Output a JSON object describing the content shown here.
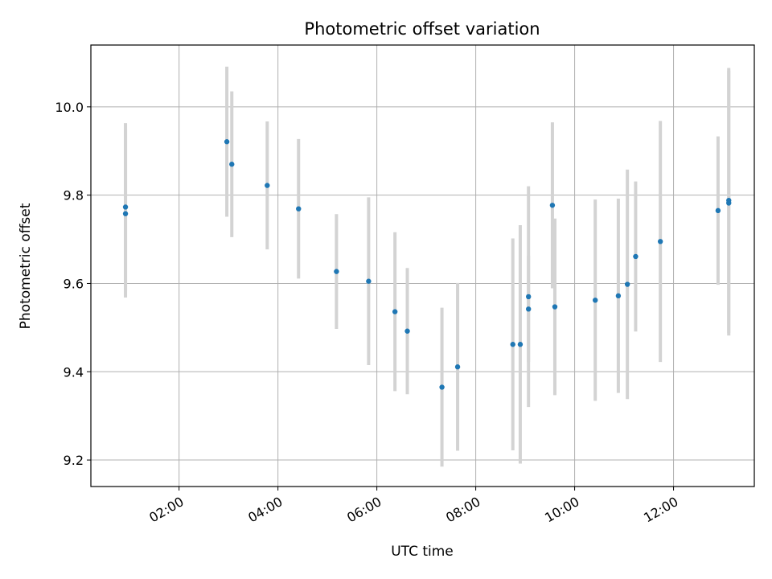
{
  "chart_data": {
    "type": "scatter",
    "title": "Photometric offset variation",
    "xlabel": "UTC time",
    "ylabel": "Photometric offset",
    "x_ticks": [
      "02:00",
      "04:00",
      "06:00",
      "08:00",
      "10:00",
      "12:00"
    ],
    "y_ticks": [
      "9.2",
      "9.4",
      "9.6",
      "9.8",
      "10.0"
    ],
    "xlim": [
      "00:13",
      "13:38"
    ],
    "ylim": [
      9.14,
      10.14
    ],
    "grid": true,
    "series": [
      {
        "marker_color": "#1f77b4",
        "errorbar_color": "#d3d3d3",
        "points": [
          {
            "x": "00:55",
            "y": 9.773,
            "err": 0.19
          },
          {
            "x": "00:55",
            "y": 9.758,
            "err": 0.19
          },
          {
            "x": "02:58",
            "y": 9.921,
            "err": 0.17
          },
          {
            "x": "03:04",
            "y": 9.87,
            "err": 0.165
          },
          {
            "x": "03:47",
            "y": 9.822,
            "err": 0.145
          },
          {
            "x": "04:25",
            "y": 9.769,
            "err": 0.158
          },
          {
            "x": "05:11",
            "y": 9.627,
            "err": 0.13
          },
          {
            "x": "05:50",
            "y": 9.605,
            "err": 0.19
          },
          {
            "x": "06:22",
            "y": 9.536,
            "err": 0.18
          },
          {
            "x": "06:37",
            "y": 9.492,
            "err": 0.143
          },
          {
            "x": "07:19",
            "y": 9.365,
            "err": 0.18
          },
          {
            "x": "07:38",
            "y": 9.411,
            "err": 0.19
          },
          {
            "x": "08:45",
            "y": 9.462,
            "err": 0.24
          },
          {
            "x": "08:54",
            "y": 9.462,
            "err": 0.27
          },
          {
            "x": "09:04",
            "y": 9.57,
            "err": 0.25
          },
          {
            "x": "09:04",
            "y": 9.542,
            "err": 0.12
          },
          {
            "x": "09:33",
            "y": 9.777,
            "err": 0.188
          },
          {
            "x": "09:36",
            "y": 9.547,
            "err": 0.2
          },
          {
            "x": "10:25",
            "y": 9.562,
            "err": 0.228
          },
          {
            "x": "10:53",
            "y": 9.572,
            "err": 0.22
          },
          {
            "x": "11:04",
            "y": 9.598,
            "err": 0.26
          },
          {
            "x": "11:14",
            "y": 9.661,
            "err": 0.17
          },
          {
            "x": "11:44",
            "y": 9.695,
            "err": 0.273
          },
          {
            "x": "12:54",
            "y": 9.765,
            "err": 0.168
          },
          {
            "x": "13:07",
            "y": 9.788,
            "err": 0.3
          },
          {
            "x": "13:07",
            "y": 9.782,
            "err": 0.3
          }
        ]
      }
    ]
  }
}
